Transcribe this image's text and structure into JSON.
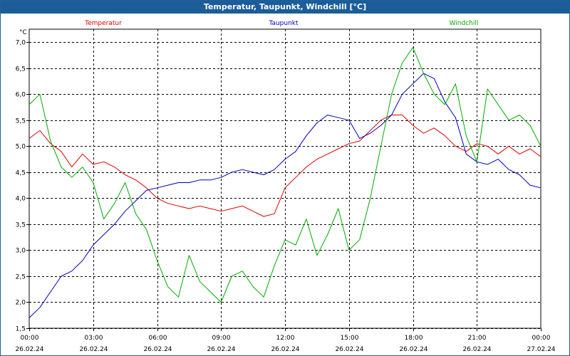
{
  "chart_data": {
    "type": "line",
    "title": "Temperatur, Taupunkt, Windchill [°C]",
    "ylabel": "°C",
    "xlabel": "",
    "ylim": [
      1.5,
      7.25
    ],
    "xlim": [
      0,
      24
    ],
    "grid": true,
    "yticks": [
      1.5,
      2.0,
      2.5,
      3.0,
      3.5,
      4.0,
      4.5,
      5.0,
      5.5,
      6.0,
      6.5,
      7.0
    ],
    "ytick_labels": [
      "1,5",
      "2,0",
      "2,5",
      "3,0",
      "3,5",
      "4,0",
      "4,5",
      "5,0",
      "5,5",
      "6,0",
      "6,5",
      "7,0"
    ],
    "xticks": [
      0,
      3,
      6,
      9,
      12,
      15,
      18,
      21,
      24
    ],
    "xtick_times": [
      "00:00",
      "03:00",
      "06:00",
      "09:00",
      "12:00",
      "15:00",
      "18:00",
      "21:00",
      "00:00"
    ],
    "xtick_dates": [
      "26.02.24",
      "26.02.24",
      "26.02.24",
      "26.02.24",
      "26.02.24",
      "26.02.24",
      "26.02.24",
      "26.02.24",
      "27.02.24"
    ],
    "series": [
      {
        "name": "Temperatur",
        "color": "#dd0000",
        "x": [
          0,
          0.5,
          1,
          1.5,
          2,
          2.5,
          3,
          3.5,
          4,
          4.5,
          5,
          5.5,
          6,
          6.5,
          7,
          7.5,
          8,
          8.5,
          9,
          9.5,
          10,
          10.5,
          11,
          11.5,
          12,
          12.5,
          13,
          13.5,
          14,
          14.5,
          15,
          15.5,
          16,
          16.5,
          17,
          17.5,
          18,
          18.5,
          19,
          19.5,
          20,
          20.5,
          21,
          21.5,
          22,
          22.5,
          23,
          23.5,
          24
        ],
        "values": [
          5.15,
          5.3,
          5.05,
          4.9,
          4.6,
          4.85,
          4.65,
          4.7,
          4.6,
          4.45,
          4.35,
          4.2,
          4.0,
          3.9,
          3.85,
          3.8,
          3.85,
          3.8,
          3.75,
          3.8,
          3.85,
          3.75,
          3.65,
          3.7,
          4.2,
          4.4,
          4.6,
          4.75,
          4.85,
          4.95,
          5.05,
          5.1,
          5.3,
          5.5,
          5.6,
          5.6,
          5.4,
          5.25,
          5.35,
          5.2,
          5.0,
          4.9,
          5.05,
          5.0,
          4.85,
          5.0,
          4.85,
          4.95,
          4.8
        ]
      },
      {
        "name": "Taupunkt",
        "color": "#0000bb",
        "x": [
          0,
          0.5,
          1,
          1.5,
          2,
          2.5,
          3,
          3.5,
          4,
          4.5,
          5,
          5.5,
          6,
          6.5,
          7,
          7.5,
          8,
          8.5,
          9,
          9.5,
          10,
          10.5,
          11,
          11.5,
          12,
          12.5,
          13,
          13.5,
          14,
          14.5,
          15,
          15.5,
          16,
          16.5,
          17,
          17.5,
          18,
          18.5,
          19,
          19.5,
          20,
          20.5,
          21,
          21.5,
          22,
          22.5,
          23,
          23.5,
          24
        ],
        "values": [
          1.7,
          1.9,
          2.2,
          2.5,
          2.6,
          2.8,
          3.1,
          3.3,
          3.5,
          3.75,
          3.95,
          4.15,
          4.2,
          4.25,
          4.3,
          4.3,
          4.35,
          4.35,
          4.4,
          4.5,
          4.55,
          4.5,
          4.45,
          4.55,
          4.75,
          4.9,
          5.2,
          5.45,
          5.6,
          5.55,
          5.5,
          5.15,
          5.25,
          5.4,
          5.6,
          6.0,
          6.2,
          6.4,
          6.3,
          5.85,
          5.55,
          4.85,
          4.7,
          4.65,
          4.75,
          4.55,
          4.45,
          4.25,
          4.2
        ]
      },
      {
        "name": "Windchill",
        "color": "#00aa00",
        "x": [
          0,
          0.5,
          1,
          1.5,
          2,
          2.5,
          3,
          3.5,
          4,
          4.5,
          5,
          5.5,
          6,
          6.5,
          7,
          7.5,
          8,
          8.5,
          9,
          9.5,
          10,
          10.5,
          11,
          11.5,
          12,
          12.5,
          13,
          13.5,
          14,
          14.5,
          15,
          15.5,
          16,
          16.5,
          17,
          17.5,
          18,
          18.5,
          19,
          19.5,
          20,
          20.5,
          21,
          21.5,
          22,
          22.5,
          23,
          23.5,
          24
        ],
        "values": [
          5.8,
          6.0,
          5.1,
          4.6,
          4.4,
          4.6,
          4.3,
          3.6,
          3.9,
          4.3,
          3.7,
          3.4,
          2.8,
          2.3,
          2.1,
          2.9,
          2.4,
          2.2,
          2.0,
          2.5,
          2.6,
          2.3,
          2.1,
          2.7,
          3.2,
          3.1,
          3.6,
          2.9,
          3.3,
          3.8,
          3.0,
          3.2,
          4.0,
          5.0,
          6.0,
          6.6,
          6.9,
          6.4,
          6.0,
          5.8,
          6.2,
          5.2,
          4.7,
          6.1,
          5.8,
          5.5,
          5.6,
          5.4,
          5.0
        ]
      }
    ]
  }
}
